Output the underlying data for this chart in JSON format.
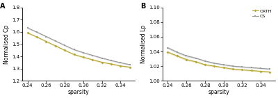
{
  "sparsity": [
    0.24,
    0.25,
    0.26,
    0.27,
    0.28,
    0.29,
    0.3,
    0.31,
    0.32,
    0.33,
    0.34,
    0.35
  ],
  "Cp_ORTH": [
    1.592,
    1.558,
    1.522,
    1.486,
    1.45,
    1.415,
    1.393,
    1.372,
    1.352,
    1.338,
    1.322,
    1.312
  ],
  "Cp_ORTH_upper": [
    1.598,
    1.564,
    1.528,
    1.492,
    1.456,
    1.421,
    1.399,
    1.378,
    1.358,
    1.344,
    1.328,
    1.318
  ],
  "Cp_ORTH_lower": [
    1.586,
    1.552,
    1.516,
    1.48,
    1.444,
    1.409,
    1.387,
    1.366,
    1.346,
    1.332,
    1.316,
    1.306
  ],
  "Cp_CS": [
    1.632,
    1.598,
    1.562,
    1.526,
    1.49,
    1.455,
    1.43,
    1.408,
    1.386,
    1.366,
    1.348,
    1.332
  ],
  "Cp_CS_upper": [
    1.638,
    1.604,
    1.568,
    1.532,
    1.496,
    1.461,
    1.436,
    1.414,
    1.392,
    1.372,
    1.354,
    1.338
  ],
  "Cp_CS_lower": [
    1.626,
    1.592,
    1.556,
    1.52,
    1.484,
    1.449,
    1.424,
    1.402,
    1.38,
    1.36,
    1.342,
    1.326
  ],
  "Lp_ORTH": [
    1.039,
    1.034,
    1.029,
    1.026,
    1.022,
    1.02,
    1.018,
    1.016,
    1.015,
    1.014,
    1.013,
    1.012
  ],
  "Lp_ORTH_upper": [
    1.0405,
    1.0355,
    1.0305,
    1.0272,
    1.0232,
    1.021,
    1.019,
    1.0172,
    1.016,
    1.015,
    1.014,
    1.013
  ],
  "Lp_ORTH_lower": [
    1.0375,
    1.0325,
    1.0275,
    1.0248,
    1.0208,
    1.019,
    1.017,
    1.0148,
    1.014,
    1.013,
    1.012,
    1.011
  ],
  "Lp_CS": [
    1.045,
    1.039,
    1.034,
    1.031,
    1.027,
    1.024,
    1.022,
    1.02,
    1.019,
    1.018,
    1.017,
    1.016
  ],
  "Lp_CS_upper": [
    1.0465,
    1.0405,
    1.0355,
    1.0322,
    1.0282,
    1.0252,
    1.0232,
    1.0212,
    1.02,
    1.019,
    1.018,
    1.017
  ],
  "Lp_CS_lower": [
    1.0435,
    1.0375,
    1.0325,
    1.0298,
    1.0258,
    1.0228,
    1.0208,
    1.0188,
    1.018,
    1.017,
    1.016,
    1.015
  ],
  "color_ORTH": "#b8a832",
  "color_CS": "#999999",
  "label_ORTH": "ORTH",
  "label_CS": "CS",
  "panel_A_ylabel": "Normalised Cp",
  "panel_B_ylabel": "Normalised Lp",
  "xlabel": "sparsity",
  "Cp_ylim": [
    1.2,
    1.8
  ],
  "Cp_yticks": [
    1.2,
    1.3,
    1.4,
    1.5,
    1.6,
    1.7,
    1.8
  ],
  "Lp_ylim": [
    1.0,
    1.1
  ],
  "Lp_yticks": [
    1.0,
    1.02,
    1.04,
    1.06,
    1.08,
    1.1
  ],
  "xticks": [
    0.24,
    0.26,
    0.28,
    0.3,
    0.32,
    0.34
  ],
  "label_A": "A",
  "label_B": "B",
  "background_color": "#ffffff"
}
